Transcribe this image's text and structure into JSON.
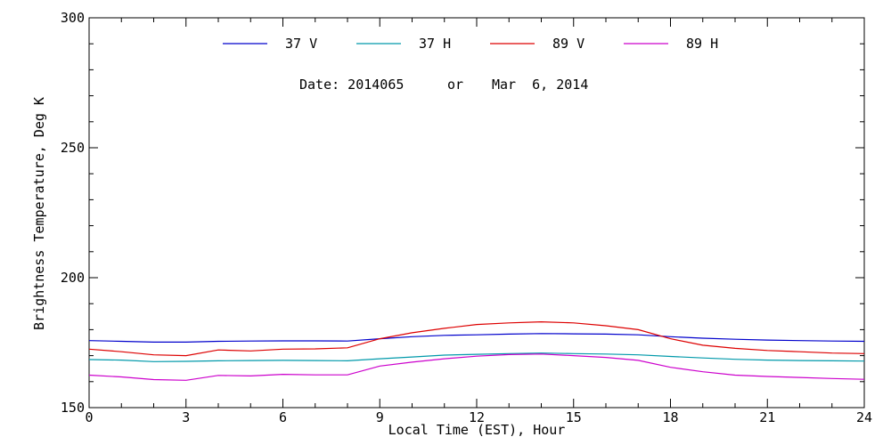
{
  "chart_data": {
    "type": "line",
    "title": "",
    "xlabel": "Local Time (EST), Hour",
    "ylabel": "Brightness Temperature, Deg K",
    "xlim": [
      0,
      24
    ],
    "ylim": [
      150,
      300
    ],
    "xticks": [
      0,
      3,
      6,
      9,
      12,
      15,
      18,
      21,
      24
    ],
    "yticks": [
      150,
      200,
      250,
      300
    ],
    "xtick_labels": [
      "0",
      "3",
      "6",
      "9",
      "12",
      "15",
      "18",
      "21",
      "24"
    ],
    "ytick_labels": [
      "150",
      "200",
      "250",
      "300"
    ],
    "grid": false,
    "legend_position": "top",
    "annotation": {
      "date_label": "Date: 2014065",
      "or_label": "or",
      "date_text": "Mar  6, 2014"
    },
    "series": [
      {
        "name": "37 V",
        "color": "#0000cc",
        "x": [
          0,
          1,
          2,
          3,
          4,
          5,
          6,
          7,
          8,
          9,
          10,
          11,
          12,
          13,
          14,
          15,
          16,
          17,
          18,
          19,
          20,
          21,
          22,
          23,
          24
        ],
        "y": [
          175.8,
          175.5,
          175.2,
          175.2,
          175.5,
          175.6,
          175.7,
          175.7,
          175.6,
          176.5,
          177.3,
          177.8,
          178.0,
          178.3,
          178.5,
          178.4,
          178.3,
          178.0,
          177.3,
          176.7,
          176.3,
          176.0,
          175.8,
          175.6,
          175.5
        ]
      },
      {
        "name": "37 H",
        "color": "#0099aa",
        "x": [
          0,
          1,
          2,
          3,
          4,
          5,
          6,
          7,
          8,
          9,
          10,
          11,
          12,
          13,
          14,
          15,
          16,
          17,
          18,
          19,
          20,
          21,
          22,
          23,
          24
        ],
        "y": [
          168.5,
          168.3,
          167.7,
          167.8,
          168.0,
          168.1,
          168.2,
          168.1,
          168.0,
          168.8,
          169.5,
          170.2,
          170.5,
          170.8,
          171.0,
          170.8,
          170.6,
          170.3,
          169.7,
          169.1,
          168.6,
          168.3,
          168.1,
          168.0,
          167.9
        ]
      },
      {
        "name": "89 V",
        "color": "#dd0000",
        "x": [
          0,
          1,
          2,
          3,
          4,
          5,
          6,
          7,
          8,
          9,
          10,
          11,
          12,
          13,
          14,
          15,
          16,
          17,
          18,
          19,
          20,
          21,
          22,
          23,
          24
        ],
        "y": [
          172.5,
          171.5,
          170.3,
          170.0,
          172.2,
          171.8,
          172.5,
          172.6,
          173.0,
          176.5,
          178.8,
          180.5,
          182.0,
          182.6,
          183.0,
          182.6,
          181.5,
          180.0,
          176.5,
          174.0,
          172.8,
          172.0,
          171.5,
          171.0,
          170.8
        ]
      },
      {
        "name": "89 H",
        "color": "#cc00cc",
        "x": [
          0,
          1,
          2,
          3,
          4,
          5,
          6,
          7,
          8,
          9,
          10,
          11,
          12,
          13,
          14,
          15,
          16,
          17,
          18,
          19,
          20,
          21,
          22,
          23,
          24
        ],
        "y": [
          162.5,
          161.8,
          160.8,
          160.5,
          162.4,
          162.2,
          162.8,
          162.6,
          162.6,
          166.0,
          167.5,
          168.8,
          169.8,
          170.4,
          170.6,
          170.0,
          169.3,
          168.2,
          165.5,
          163.8,
          162.5,
          162.0,
          161.6,
          161.2,
          160.9
        ]
      }
    ]
  }
}
